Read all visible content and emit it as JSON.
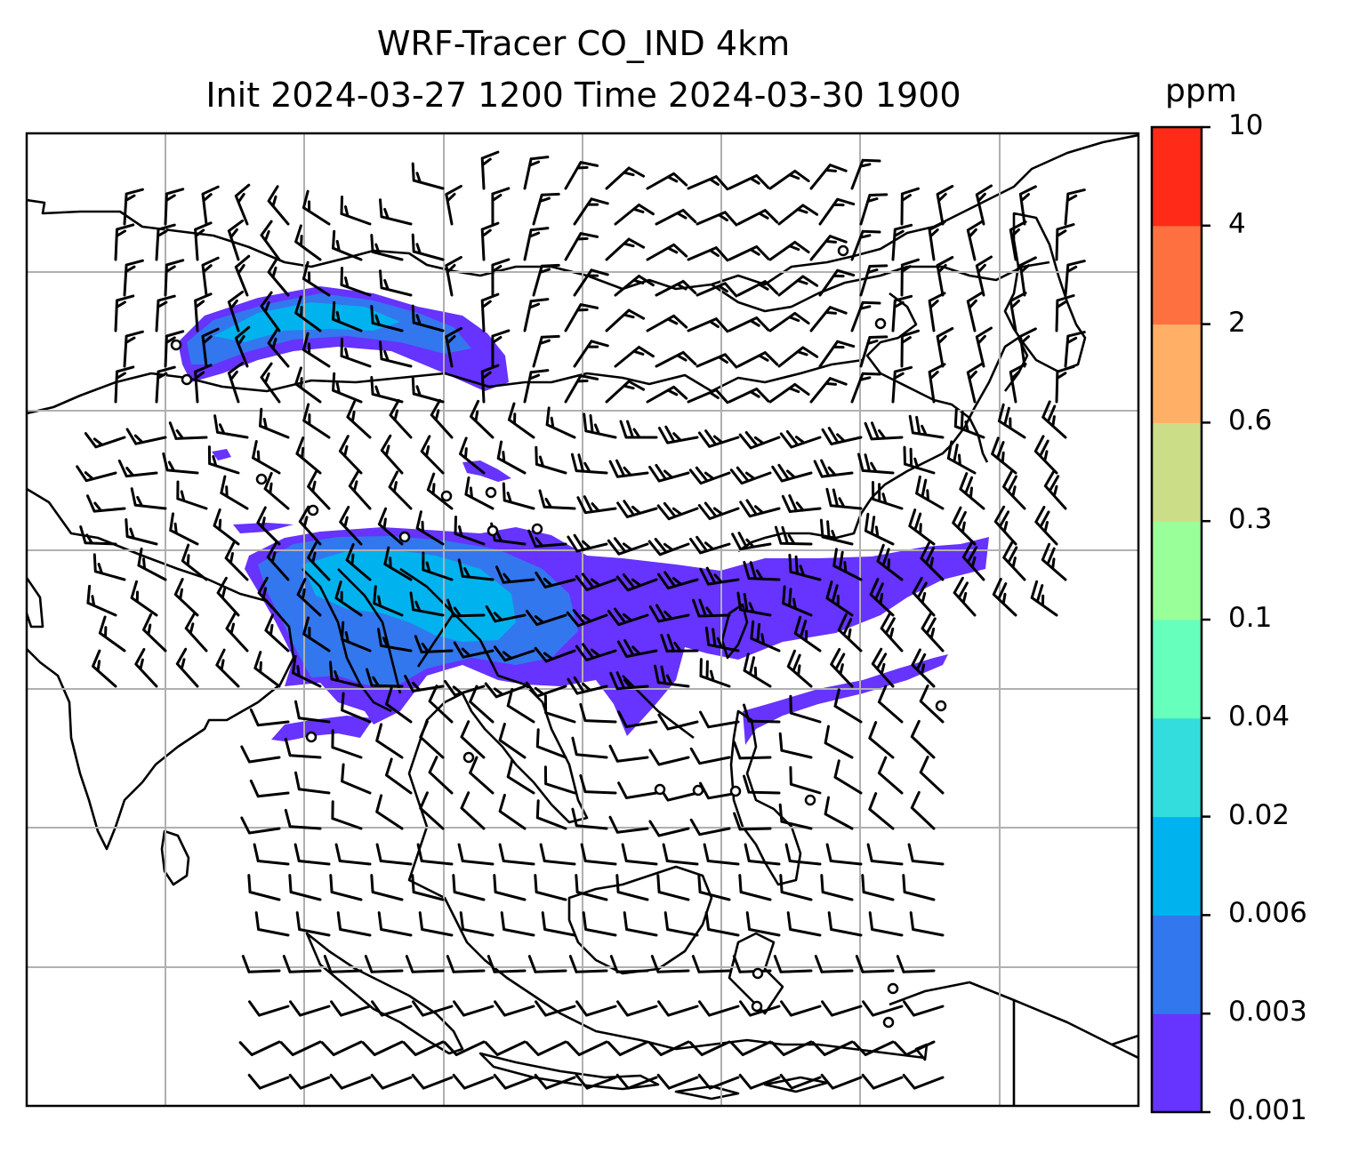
{
  "title": {
    "line1": "WRF-Tracer CO_IND 4km",
    "line2": "Init 2024-03-27 1200 Time 2024-03-30 1900"
  },
  "colorbar": {
    "unit": "ppm",
    "ticks": [
      "0.001",
      "0.003",
      "0.006",
      "0.02",
      "0.04",
      "0.1",
      "0.3",
      "0.6",
      "2",
      "4",
      "10"
    ],
    "colors": [
      "#6633ff",
      "#3377ee",
      "#00b3ee",
      "#33dddd",
      "#66ffbb",
      "#99ff99",
      "#ccdd88",
      "#ffb066",
      "#ff7040",
      "#ff2a18"
    ]
  },
  "map": {
    "grid": "on",
    "field": "CO_IND tracer concentration with wind barbs",
    "plume_colors": {
      "low": "#6633ff",
      "mid": "#3377ee",
      "high": "#00b3ee"
    }
  }
}
